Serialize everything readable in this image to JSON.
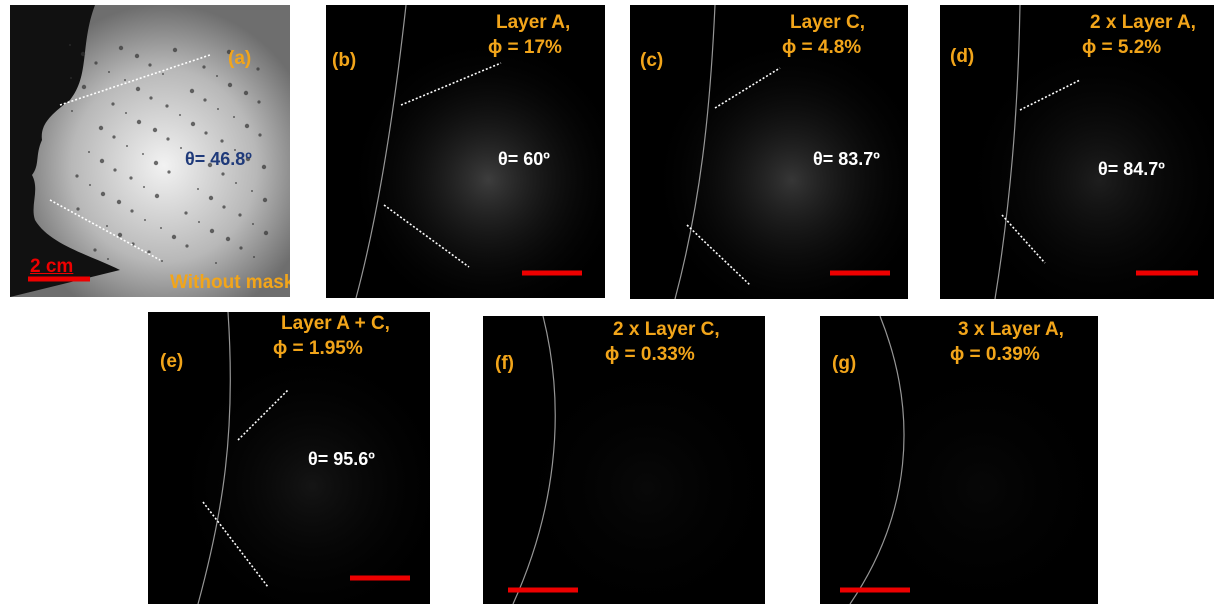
{
  "panels": [
    {
      "label": "(a)",
      "theta": "θ= 46.8º",
      "scale": "2 cm",
      "note": "Without mask"
    },
    {
      "label": "(b)",
      "heading": [
        "Layer A,",
        "ϕ = 17%"
      ],
      "theta": "θ= 60º"
    },
    {
      "label": "(c)",
      "heading": [
        "Layer C,",
        "ϕ = 4.8%"
      ],
      "theta": "θ= 83.7º"
    },
    {
      "label": "(d)",
      "heading": [
        "2 x Layer A,",
        "ϕ = 5.2%"
      ],
      "theta": "θ= 84.7º"
    },
    {
      "label": "(e)",
      "heading": [
        "Layer A + C,",
        "ϕ = 1.95%"
      ],
      "theta": "θ= 95.6º"
    },
    {
      "label": "(f)",
      "heading": [
        "2 x Layer C,",
        "ϕ = 0.33%"
      ]
    },
    {
      "label": "(g)",
      "heading": [
        "3 x Layer A,",
        "ϕ = 0.39%"
      ]
    }
  ]
}
